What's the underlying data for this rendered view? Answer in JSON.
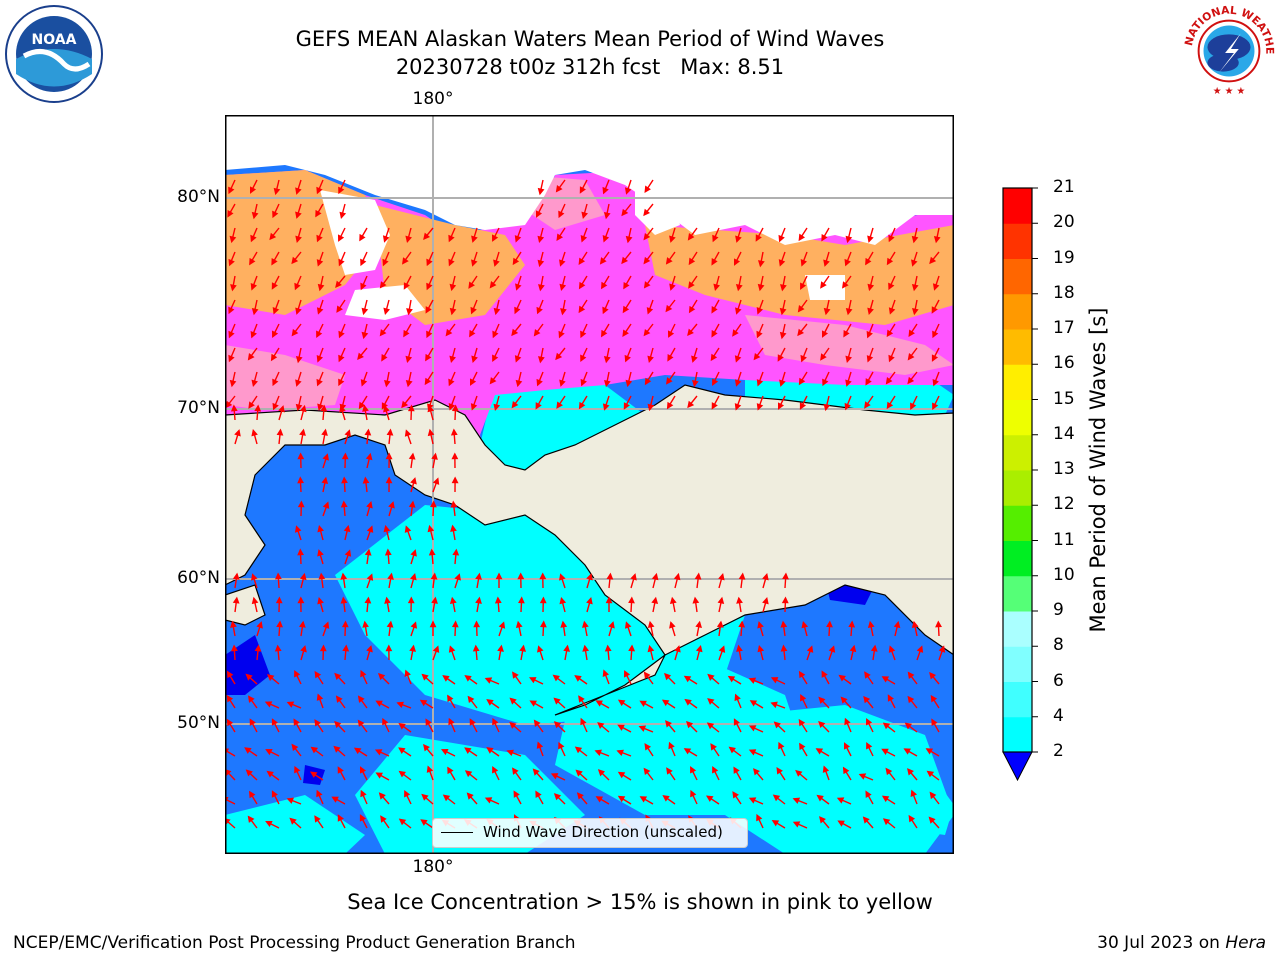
{
  "header": {
    "title": "GEFS MEAN Alaskan Waters Mean Period of Wind Waves",
    "subtitle": "20230728 t00z 312h fcst   Max: 8.51"
  },
  "logos": {
    "noaa_text": "NOAA",
    "nws_text": "NATIONAL WEATHER SERVICE"
  },
  "map": {
    "lon_labels": [
      "180°",
      "180°"
    ],
    "lat_labels": [
      "80°N",
      "70°N",
      "60°N",
      "50°N"
    ],
    "legend_label": "Wind Wave Direction (unscaled)",
    "land_color": "#efedde",
    "ocean_low_color": "#1e78ff",
    "ocean_mid_color": "#00ffff",
    "ice_colors": [
      "#ff55ff",
      "#ff99cc",
      "#ffb347"
    ],
    "arrow_color": "#ff0000"
  },
  "colorbar": {
    "label": "Mean Period of Wind Waves [s]",
    "ticks": [
      "2",
      "4",
      "6",
      "8",
      "9",
      "10",
      "11",
      "12",
      "13",
      "14",
      "15",
      "16",
      "17",
      "18",
      "19",
      "20",
      "21"
    ],
    "colors": [
      "#1e6eff",
      "#00ffff",
      "#40ffff",
      "#80ffff",
      "#aaffff",
      "#55ff77",
      "#00ee22",
      "#55ee00",
      "#aaee00",
      "#ccf000",
      "#eeff00",
      "#ffee00",
      "#ffbb00",
      "#ff9900",
      "#ff6600",
      "#ff3300",
      "#ff0000"
    ],
    "extend_color": "#0000ff"
  },
  "footer": {
    "note": "Sea Ice Concentration > 15% is shown in pink to yellow",
    "credit": "NCEP/EMC/Verification Post Processing Product Generation Branch",
    "date": "30 Jul 2023 on",
    "host": "Hera"
  }
}
